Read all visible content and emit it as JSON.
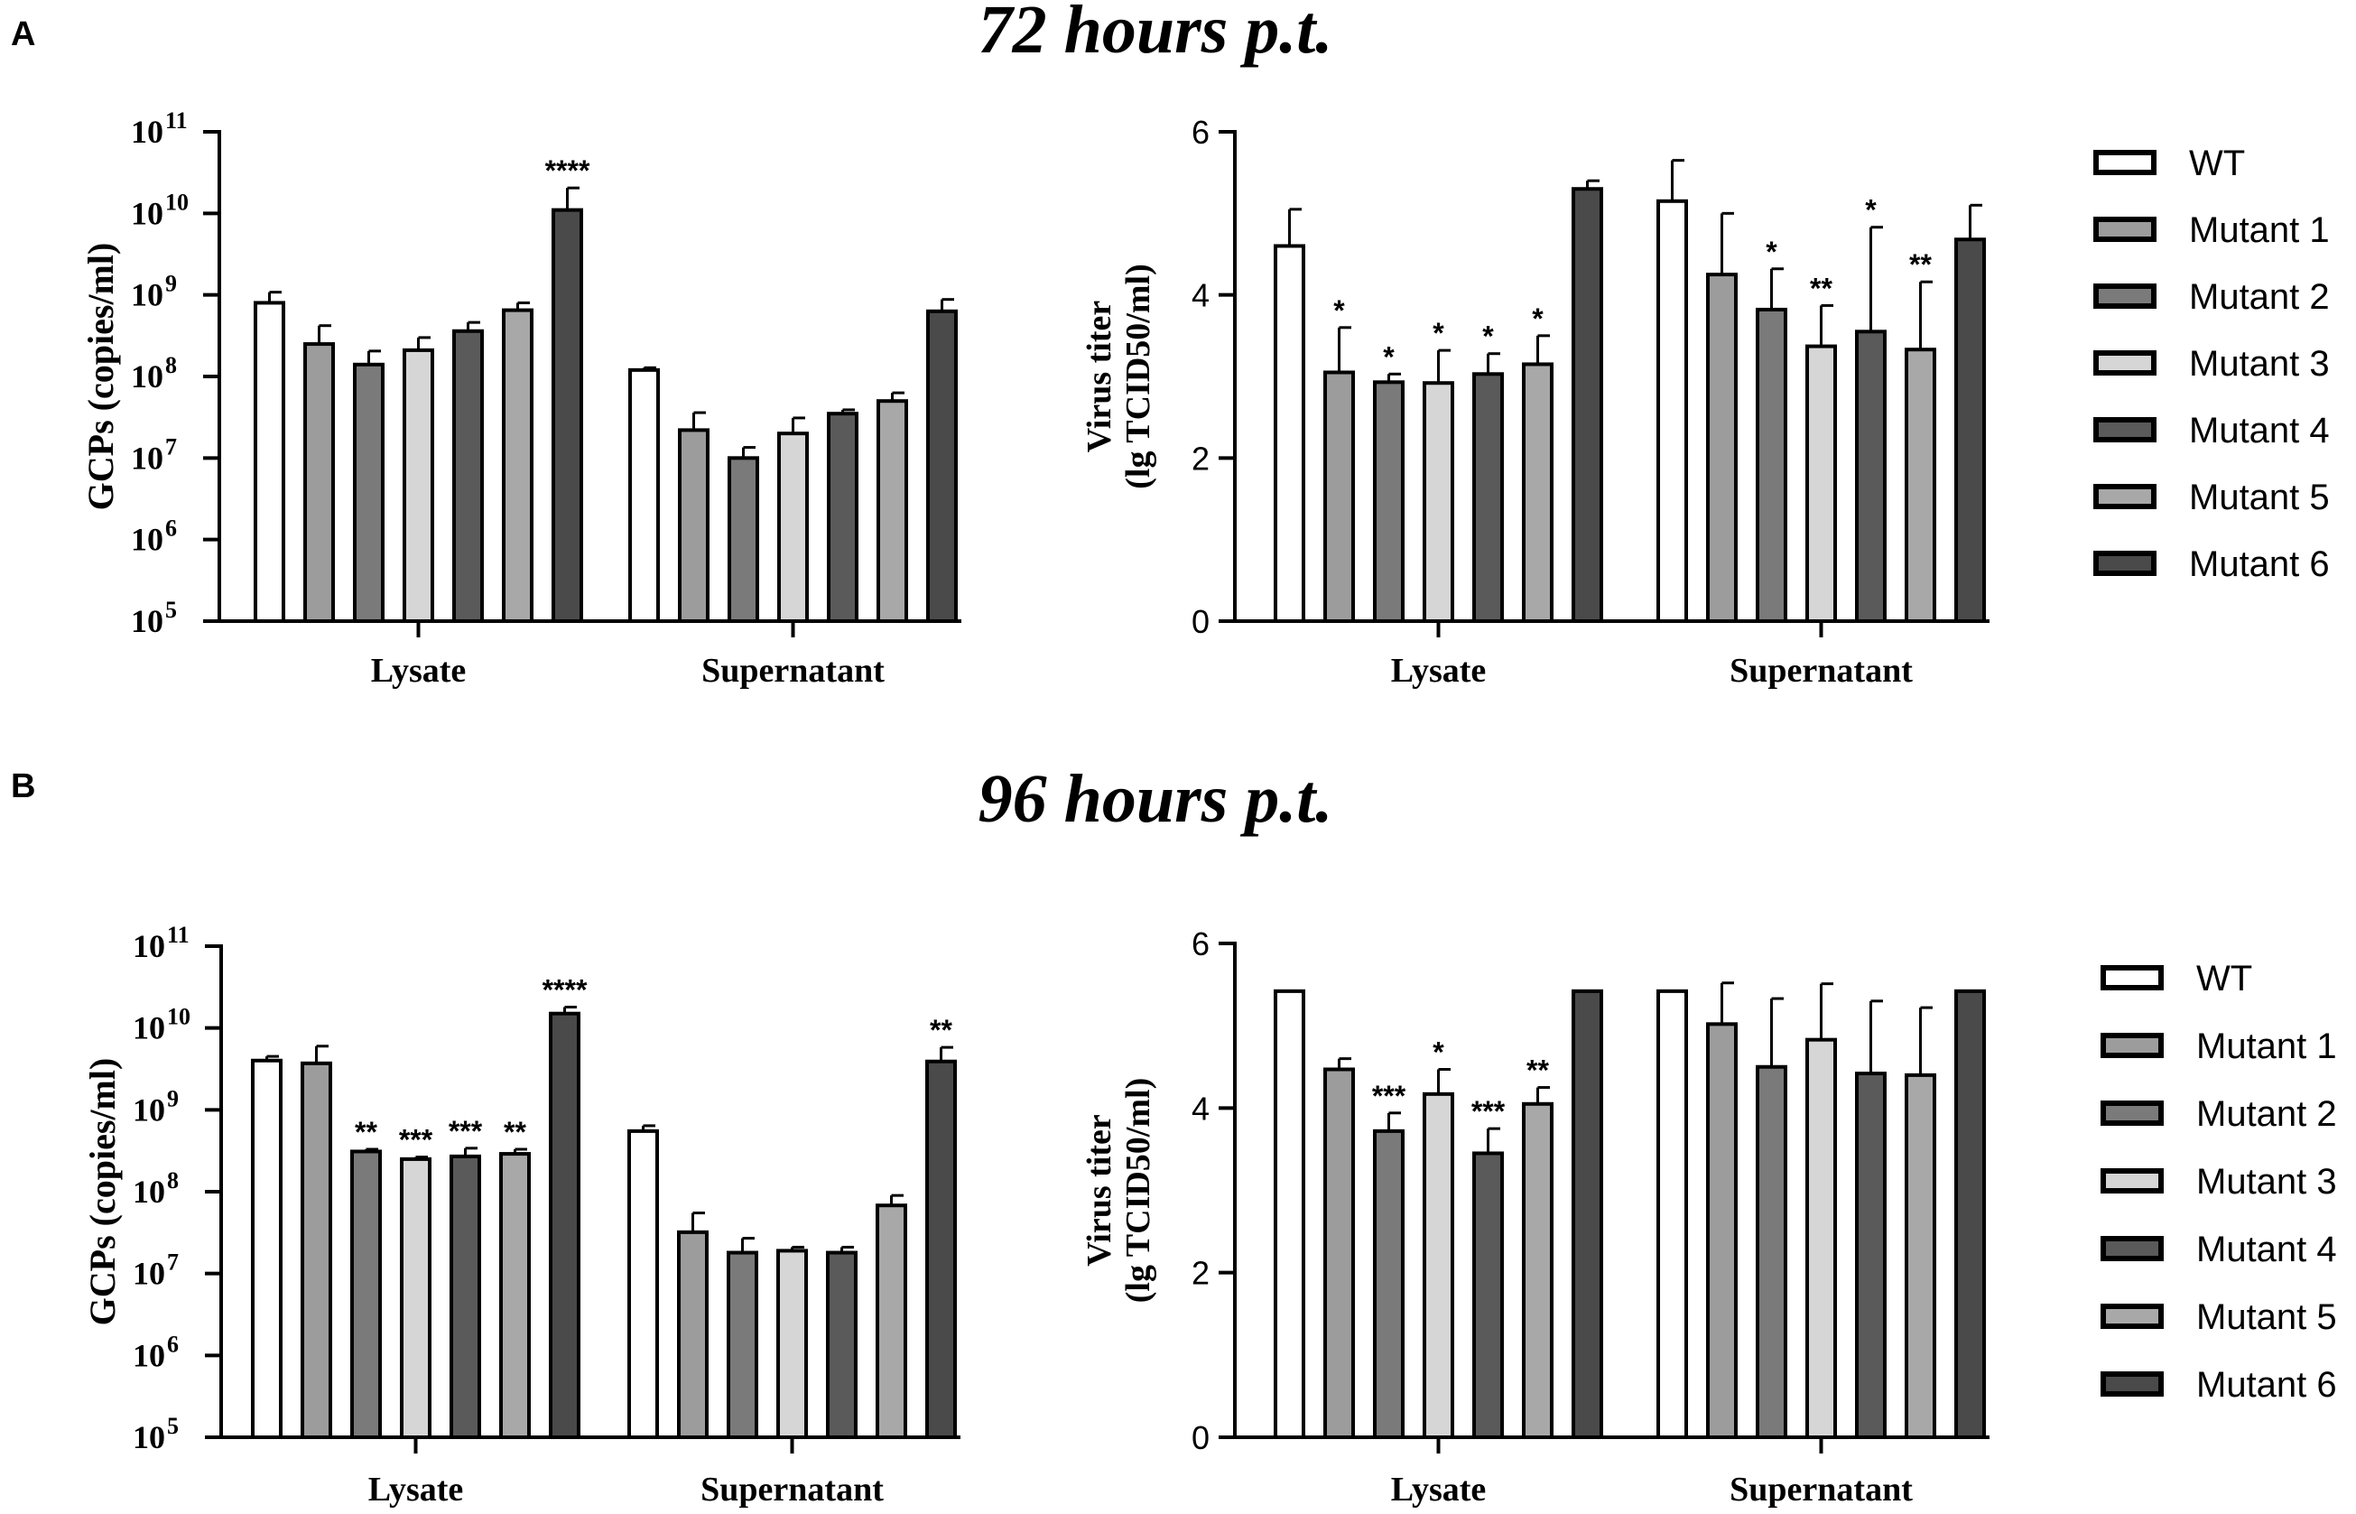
{
  "panels": [
    {
      "letter": "A",
      "title": "72 hours p.t."
    },
    {
      "letter": "B",
      "title": "96 hours p.t."
    }
  ],
  "colors": {
    "WT": "#ffffff",
    "Mutant 1": "#9c9c9c",
    "Mutant 2": "#7a7a7a",
    "Mutant 3": "#d6d6d6",
    "Mutant 4": "#5a5a5a",
    "Mutant 5": "#a8a8a8",
    "Mutant 6": "#4a4a4a",
    "stroke": "#000000"
  },
  "chart_data": [
    {
      "id": "A-gcp",
      "panel": "A",
      "type": "bar",
      "scale": "log",
      "ylabel": "GCPs (copies/ml)",
      "ylim": [
        100000,
        100000000000
      ],
      "yticks": [
        {
          "base": "10",
          "exp": "5"
        },
        {
          "base": "10",
          "exp": "6"
        },
        {
          "base": "10",
          "exp": "7"
        },
        {
          "base": "10",
          "exp": "8"
        },
        {
          "base": "10",
          "exp": "9"
        },
        {
          "base": "10",
          "exp": "10"
        },
        {
          "base": "10",
          "exp": "11"
        }
      ],
      "categories": [
        "Lysate",
        "Supernatant"
      ],
      "series": [
        {
          "name": "WT",
          "values": [
            800000000,
            120000000
          ],
          "errors": [
            1080000000,
            128000000
          ],
          "sig": [
            "",
            ""
          ]
        },
        {
          "name": "Mutant 1",
          "values": [
            250000000,
            22000000
          ],
          "errors": [
            420000000,
            36000000
          ],
          "sig": [
            "",
            ""
          ]
        },
        {
          "name": "Mutant 2",
          "values": [
            140000000,
            10000000
          ],
          "errors": [
            205000000,
            13500000
          ],
          "sig": [
            "",
            ""
          ]
        },
        {
          "name": "Mutant 3",
          "values": [
            210000000,
            20000000
          ],
          "errors": [
            300000000,
            31000000
          ],
          "sig": [
            "",
            ""
          ]
        },
        {
          "name": "Mutant 4",
          "values": [
            360000000,
            35000000
          ],
          "errors": [
            460000000,
            39000000
          ],
          "sig": [
            "",
            ""
          ]
        },
        {
          "name": "Mutant 5",
          "values": [
            650000000,
            50000000
          ],
          "errors": [
            800000000,
            63000000
          ],
          "sig": [
            "",
            ""
          ]
        },
        {
          "name": "Mutant 6",
          "values": [
            11000000000,
            630000000
          ],
          "errors": [
            20500000000,
            880000000
          ],
          "sig": [
            "****",
            ""
          ]
        }
      ]
    },
    {
      "id": "A-titer",
      "panel": "A",
      "type": "bar",
      "scale": "linear",
      "ylabel": "Virus titer",
      "ylabel2": "(lg TCID50/ml)",
      "ylim": [
        0,
        6
      ],
      "yticks": [
        "0",
        "2",
        "4",
        "6"
      ],
      "categories": [
        "Lysate",
        "Supernatant"
      ],
      "series": [
        {
          "name": "WT",
          "values": [
            4.6,
            5.15
          ],
          "errors": [
            0.45,
            0.5
          ],
          "sig": [
            "",
            ""
          ]
        },
        {
          "name": "Mutant 1",
          "values": [
            3.05,
            4.25
          ],
          "errors": [
            0.55,
            0.75
          ],
          "sig": [
            "*",
            ""
          ]
        },
        {
          "name": "Mutant 2",
          "values": [
            2.93,
            3.82
          ],
          "errors": [
            0.1,
            0.5
          ],
          "sig": [
            "*",
            "*"
          ]
        },
        {
          "name": "Mutant 3",
          "values": [
            2.92,
            3.37
          ],
          "errors": [
            0.4,
            0.5
          ],
          "sig": [
            "*",
            "**"
          ]
        },
        {
          "name": "Mutant 4",
          "values": [
            3.03,
            3.55
          ],
          "errors": [
            0.25,
            1.28
          ],
          "sig": [
            "*",
            "*"
          ]
        },
        {
          "name": "Mutant 5",
          "values": [
            3.15,
            3.33
          ],
          "errors": [
            0.35,
            0.83
          ],
          "sig": [
            "*",
            "**"
          ]
        },
        {
          "name": "Mutant 6",
          "values": [
            5.3,
            4.68
          ],
          "errors": [
            0.1,
            0.42
          ],
          "sig": [
            "",
            ""
          ]
        }
      ]
    },
    {
      "id": "B-gcp",
      "panel": "B",
      "type": "bar",
      "scale": "log",
      "ylabel": "GCPs (copies/ml)",
      "ylim": [
        100000,
        100000000000
      ],
      "yticks": [
        {
          "base": "10",
          "exp": "5"
        },
        {
          "base": "10",
          "exp": "6"
        },
        {
          "base": "10",
          "exp": "7"
        },
        {
          "base": "10",
          "exp": "8"
        },
        {
          "base": "10",
          "exp": "9"
        },
        {
          "base": "10",
          "exp": "10"
        },
        {
          "base": "10",
          "exp": "11"
        }
      ],
      "categories": [
        "Lysate",
        "Supernatant"
      ],
      "series": [
        {
          "name": "WT",
          "values": [
            4000000000,
            550000000
          ],
          "errors": [
            4500000000,
            640000000
          ],
          "sig": [
            "",
            ""
          ]
        },
        {
          "name": "Mutant 1",
          "values": [
            3700000000,
            32000000
          ],
          "errors": [
            6000000000,
            55000000
          ],
          "sig": [
            "",
            ""
          ]
        },
        {
          "name": "Mutant 2",
          "values": [
            310000000,
            18000000
          ],
          "errors": [
            330000000,
            27000000
          ],
          "sig": [
            "**",
            ""
          ]
        },
        {
          "name": "Mutant 3",
          "values": [
            250000000,
            19000000
          ],
          "errors": [
            265000000,
            21000000
          ],
          "sig": [
            "***",
            ""
          ]
        },
        {
          "name": "Mutant 4",
          "values": [
            270000000,
            18000000
          ],
          "errors": [
            340000000,
            21000000
          ],
          "sig": [
            "***",
            ""
          ]
        },
        {
          "name": "Mutant 5",
          "values": [
            290000000,
            68000000
          ],
          "errors": [
            330000000,
            90000000
          ],
          "sig": [
            "**",
            ""
          ]
        },
        {
          "name": "Mutant 6",
          "values": [
            15000000000,
            3900000000
          ],
          "errors": [
            18000000000,
            5800000000
          ],
          "sig": [
            "****",
            "**"
          ]
        }
      ]
    },
    {
      "id": "B-titer",
      "panel": "B",
      "type": "bar",
      "scale": "linear",
      "ylabel": "Virus titer",
      "ylabel2": "(lg TCID50/ml)",
      "ylim": [
        0,
        6
      ],
      "yticks": [
        "0",
        "2",
        "4",
        "6"
      ],
      "categories": [
        "Lysate",
        "Supernatant"
      ],
      "series": [
        {
          "name": "WT",
          "values": [
            5.42,
            5.42
          ],
          "errors": [
            0,
            0
          ],
          "sig": [
            "",
            ""
          ]
        },
        {
          "name": "Mutant 1",
          "values": [
            4.47,
            5.02
          ],
          "errors": [
            0.13,
            0.5
          ],
          "sig": [
            "",
            ""
          ]
        },
        {
          "name": "Mutant 2",
          "values": [
            3.72,
            4.5
          ],
          "errors": [
            0.22,
            0.83
          ],
          "sig": [
            "***",
            ""
          ]
        },
        {
          "name": "Mutant 3",
          "values": [
            4.17,
            4.83
          ],
          "errors": [
            0.3,
            0.68
          ],
          "sig": [
            "*",
            ""
          ]
        },
        {
          "name": "Mutant 4",
          "values": [
            3.45,
            4.42
          ],
          "errors": [
            0.3,
            0.88
          ],
          "sig": [
            "***",
            ""
          ]
        },
        {
          "name": "Mutant 5",
          "values": [
            4.05,
            4.4
          ],
          "errors": [
            0.2,
            0.82
          ],
          "sig": [
            "**",
            ""
          ]
        },
        {
          "name": "Mutant 6",
          "values": [
            5.42,
            5.42
          ],
          "errors": [
            0,
            0
          ],
          "sig": [
            "",
            ""
          ]
        }
      ]
    }
  ],
  "legends": [
    {
      "panel": "A",
      "entries": [
        "WT",
        "Mutant 1",
        "Mutant 2",
        "Mutant 3",
        "Mutant 4",
        "Mutant 5",
        "Mutant 6"
      ]
    },
    {
      "panel": "B",
      "entries": [
        "WT",
        "Mutant 1",
        "Mutant 2",
        "Mutant 3",
        "Mutant 4",
        "Mutant 5",
        "Mutant 6"
      ]
    }
  ]
}
